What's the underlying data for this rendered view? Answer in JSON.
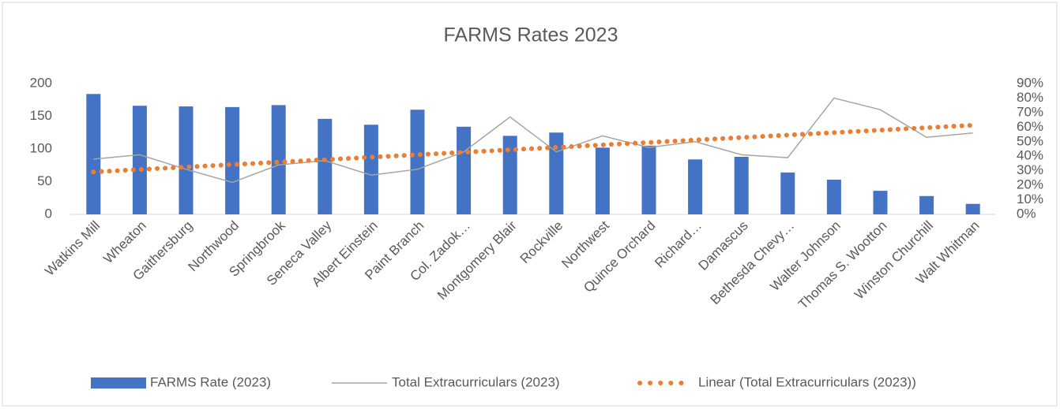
{
  "chart_data": {
    "type": "bar-line",
    "title": "FARMS Rates 2023",
    "categories": [
      "Watkins Mill",
      "Wheaton",
      "Gaithersburg",
      "Northwood",
      "Springbrook",
      "Seneca Valley",
      "Albert Einstein",
      "Paint Branch",
      "Col. Zadok…",
      "Montgomery Blair",
      "Rockville",
      "Northwest",
      "Quince Orchard",
      "Richard…",
      "Damascus",
      "Bethesda Chevy…",
      "Walter Johnson",
      "Thomas S. Wootton",
      "Winston Churchill",
      "Walt Whitman"
    ],
    "series": [
      {
        "name": "FARMS Rate (2023)",
        "color": "#4472c4",
        "kind": "bar",
        "values": [
          184,
          166,
          165,
          164,
          167,
          146,
          137,
          160,
          134,
          120,
          125,
          102,
          105,
          84,
          88,
          64,
          53,
          36,
          28,
          16
        ]
      },
      {
        "name": "Total Extracurriculars (2023)",
        "color": "#a5a5a5",
        "kind": "line",
        "axis": "y2",
        "values": [
          38,
          41,
          31,
          22,
          34,
          37,
          27,
          31,
          43,
          67,
          43,
          54,
          46,
          50,
          41,
          39,
          80,
          72,
          53,
          56
        ]
      }
    ],
    "trendline": {
      "name": "Linear (Total Extracurriculars (2023))",
      "color": "#ed7d31",
      "series": 1,
      "fit": "linear"
    },
    "ylim": [
      0,
      200
    ],
    "yticks": [
      0,
      50,
      100,
      150,
      200
    ],
    "y2lim": [
      0,
      90
    ],
    "y2ticks": [
      {
        "value": 0,
        "label": "0%"
      },
      {
        "value": 10,
        "label": "10%"
      },
      {
        "value": 20,
        "label": "20%"
      },
      {
        "value": 30,
        "label": "30%"
      },
      {
        "value": 40,
        "label": "40%"
      },
      {
        "value": 50,
        "label": "50%"
      },
      {
        "value": 60,
        "label": "60%"
      },
      {
        "value": 70,
        "label": "70%"
      },
      {
        "value": 80,
        "label": "80%"
      },
      {
        "value": 90,
        "label": "90%"
      }
    ],
    "grid": false
  }
}
